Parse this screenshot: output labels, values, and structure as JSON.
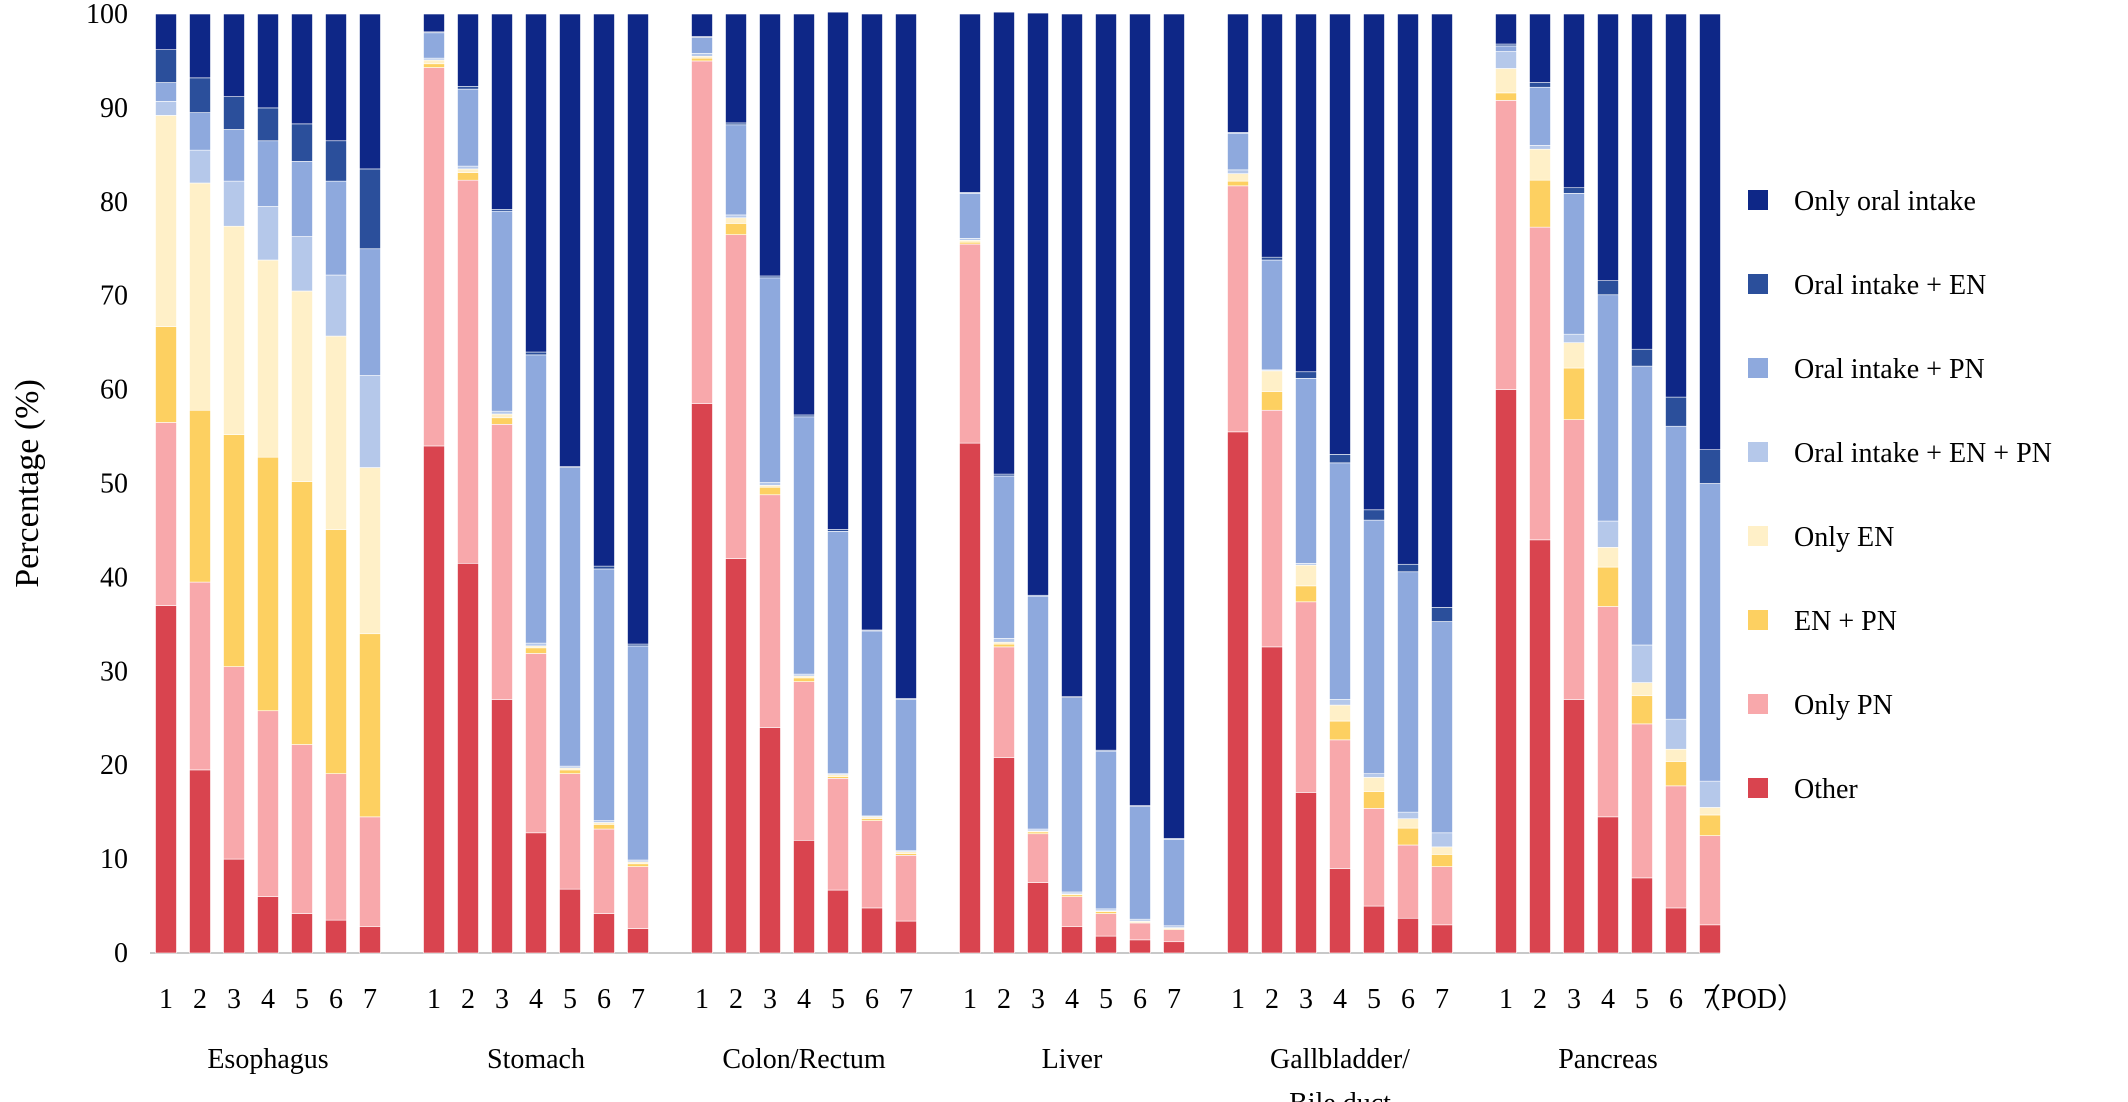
{
  "chart_data": {
    "type": "bar",
    "stacked": true,
    "ylabel": "Percentage (%)",
    "ylim": [
      0,
      100
    ],
    "yticks": [
      "0",
      "10",
      "20",
      "30",
      "40",
      "50",
      "60",
      "70",
      "80",
      "90",
      "100"
    ],
    "x_unit_label": "（POD）",
    "grid": false,
    "legend_position": "right",
    "series": [
      {
        "name": "Other",
        "color": "#d9444f"
      },
      {
        "name": "Only PN",
        "color": "#f8a8ab"
      },
      {
        "name": "EN + PN",
        "color": "#fdd061"
      },
      {
        "name": "Only EN",
        "color": "#fff0c8"
      },
      {
        "name": "Oral intake + EN + PN",
        "color": "#b5c8ea"
      },
      {
        "name": "Oral intake + PN",
        "color": "#8ea9dd"
      },
      {
        "name": "Oral intake + EN",
        "color": "#2b4f9b"
      },
      {
        "name": "Only oral intake",
        "color": "#0e2787"
      }
    ],
    "groups": [
      {
        "label": "Esophagus",
        "categories": [
          "1",
          "2",
          "3",
          "4",
          "5",
          "6",
          "7"
        ],
        "values": [
          [
            37,
            19.5,
            10,
            6,
            4.2,
            3.5,
            2.8
          ],
          [
            19.5,
            20,
            20.5,
            19.8,
            18,
            15.6,
            11.7
          ],
          [
            10.2,
            18.3,
            24.7,
            27,
            28,
            26,
            19.5
          ],
          [
            22.5,
            24.2,
            22.2,
            21,
            20.3,
            20.6,
            17.7
          ],
          [
            1.5,
            3.5,
            4.8,
            5.7,
            5.8,
            6.5,
            9.8
          ],
          [
            2,
            4,
            5.5,
            7,
            8,
            10,
            13.5
          ],
          [
            3.5,
            3.7,
            3.5,
            3.5,
            4,
            4.3,
            8.5
          ],
          [
            3.8,
            6.8,
            8.8,
            10,
            11.7,
            13.5,
            16.5
          ]
        ]
      },
      {
        "label": "Stomach",
        "categories": [
          "1",
          "2",
          "3",
          "4",
          "5",
          "6",
          "7"
        ],
        "values": [
          [
            54,
            41.5,
            27,
            12.8,
            6.8,
            4.2,
            2.6
          ],
          [
            40.3,
            40.8,
            29.3,
            19.1,
            12.3,
            9,
            6.6
          ],
          [
            0.4,
            0.8,
            0.7,
            0.6,
            0.4,
            0.5,
            0.3
          ],
          [
            0.4,
            0.4,
            0.4,
            0.2,
            0.2,
            0.2,
            0.2
          ],
          [
            0.2,
            0.3,
            0.3,
            0.3,
            0.2,
            0.2,
            0.2
          ],
          [
            2.7,
            8.2,
            21.3,
            30.7,
            31.8,
            26.8,
            22.8
          ],
          [
            0.1,
            0.3,
            0.2,
            0.3,
            0.1,
            0.3,
            0.2
          ],
          [
            1.9,
            7.7,
            20.8,
            36,
            48.2,
            58.8,
            67.1
          ]
        ]
      },
      {
        "label": "Colon/Rectum",
        "categories": [
          "1",
          "2",
          "3",
          "4",
          "5",
          "6",
          "7"
        ],
        "values": [
          [
            58.5,
            42,
            24,
            12,
            6.7,
            4.8,
            3.4
          ],
          [
            36.5,
            34.5,
            24.8,
            16.9,
            11.9,
            9.3,
            7
          ],
          [
            0.3,
            1.2,
            0.8,
            0.4,
            0.2,
            0.2,
            0.2
          ],
          [
            0.2,
            0.6,
            0.2,
            0.2,
            0.2,
            0.2,
            0.2
          ],
          [
            0.3,
            0.3,
            0.3,
            0.2,
            0.1,
            0.1,
            0.1
          ],
          [
            1.7,
            9.6,
            21.8,
            27.4,
            25.8,
            19.7,
            16.1
          ],
          [
            0.1,
            0.2,
            0.2,
            0.2,
            0.2,
            0.1,
            0.1
          ],
          [
            2.4,
            11.6,
            27.9,
            42.7,
            55.1,
            65.6,
            72.9
          ]
        ]
      },
      {
        "label": "Liver",
        "categories": [
          "1",
          "2",
          "3",
          "4",
          "5",
          "6",
          "7"
        ],
        "values": [
          [
            54.3,
            20.8,
            7.5,
            2.8,
            1.8,
            1.4,
            1.2
          ],
          [
            21.2,
            11.8,
            5.2,
            3.2,
            2.4,
            1.8,
            1.3
          ],
          [
            0.2,
            0.3,
            0.2,
            0.2,
            0.2,
            0.1,
            0.1
          ],
          [
            0.2,
            0.2,
            0.1,
            0.1,
            0.1,
            0.1,
            0.1
          ],
          [
            0.2,
            0.4,
            0.2,
            0.2,
            0.2,
            0.2,
            0.2
          ],
          [
            4.8,
            17.3,
            24.8,
            20.7,
            16.8,
            12,
            9.2
          ],
          [
            0.1,
            0.2,
            0.1,
            0.1,
            0.1,
            0.1,
            0.1
          ],
          [
            19,
            49.2,
            62,
            72.7,
            78.4,
            84.3,
            87.8
          ]
        ]
      },
      {
        "label": "Gallbladder/ Bile duct",
        "categories": [
          "1",
          "2",
          "3",
          "4",
          "5",
          "6",
          "7"
        ],
        "values": [
          [
            55.5,
            32.6,
            17.1,
            9,
            5,
            3.7,
            3
          ],
          [
            26.2,
            25.2,
            20.3,
            13.7,
            10.4,
            7.8,
            6.2
          ],
          [
            0.5,
            2,
            1.7,
            2,
            1.8,
            1.8,
            1.3
          ],
          [
            0.8,
            2.2,
            2.2,
            1.7,
            1.5,
            1,
            0.8
          ],
          [
            0.4,
            0.1,
            0.2,
            0.6,
            0.4,
            0.7,
            1.5
          ],
          [
            3.9,
            11.7,
            19.7,
            25.2,
            27,
            25.6,
            22.5
          ],
          [
            0.1,
            0.3,
            0.7,
            0.9,
            1.1,
            0.8,
            1.5
          ],
          [
            12.6,
            25.9,
            38.1,
            46.9,
            52.8,
            58.6,
            63.2
          ]
        ]
      },
      {
        "label": "Pancreas",
        "categories": [
          "1",
          "2",
          "3",
          "4",
          "5",
          "6",
          "7"
        ],
        "values": [
          [
            60,
            44,
            27,
            14.5,
            8,
            4.8,
            3
          ],
          [
            30.8,
            33.3,
            29.8,
            22.4,
            16.4,
            13,
            9.5
          ],
          [
            0.8,
            5,
            5.5,
            4.2,
            3,
            2.6,
            2.2
          ],
          [
            2.6,
            3.3,
            2.7,
            2.1,
            1.4,
            1.3,
            0.8
          ],
          [
            1.8,
            0.4,
            0.9,
            2.8,
            4,
            3.2,
            2.8
          ],
          [
            0.6,
            6.2,
            15,
            24.1,
            29.7,
            31.2,
            31.7
          ],
          [
            0.2,
            0.5,
            0.6,
            1.5,
            1.8,
            3.1,
            3.6
          ],
          [
            3.2,
            7.3,
            18.5,
            28.4,
            35.7,
            40.8,
            46.4
          ]
        ]
      }
    ]
  }
}
